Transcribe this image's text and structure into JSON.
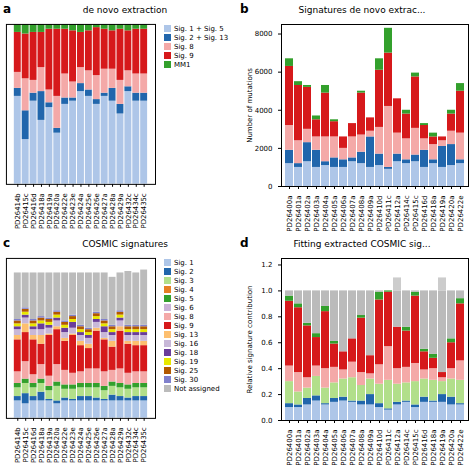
{
  "chart_data": [
    {
      "type": "bar",
      "title": "de novo extraction",
      "annotations": [
        {
          "text": "a"
        }
      ],
      "categories": [
        "PD26414b",
        "PD26415c",
        "PD26416d",
        "PD26418a",
        "PD26419a",
        "PD26420a",
        "PD26422e",
        "PD26423e",
        "PD26424a",
        "PD26425e",
        "PD26426e",
        "PD26427a",
        "PD26428a",
        "PD26429a",
        "PD26432c",
        "PD26434c",
        "PD26435c"
      ],
      "series": [
        {
          "name": "Sig. 1 + Sig. 5",
          "color": "#aec6e8",
          "values": [
            0.55,
            0.28,
            0.52,
            0.4,
            0.48,
            0.32,
            0.5,
            0.52,
            0.58,
            0.55,
            0.5,
            0.55,
            0.52,
            0.44,
            0.58,
            0.52,
            0.52
          ]
        },
        {
          "name": "Sig. 2 + Sig. 13",
          "color": "#2166ac",
          "values": [
            0.05,
            0.18,
            0.05,
            0.18,
            0.03,
            0.03,
            0.04,
            0.02,
            0.05,
            0.04,
            0.03,
            0.02,
            0.08,
            0.06,
            0.03,
            0.05,
            0.05
          ]
        },
        {
          "name": "Sig. 8",
          "color": "#f4a9a8",
          "values": [
            0.1,
            0.2,
            0.08,
            0.15,
            0.08,
            0.2,
            0.15,
            0.1,
            0.1,
            0.12,
            0.15,
            0.15,
            0.12,
            0.15,
            0.1,
            0.12,
            0.12
          ]
        },
        {
          "name": "Sig. 9",
          "color": "#d6191b",
          "values": [
            0.25,
            0.28,
            0.3,
            0.22,
            0.38,
            0.42,
            0.28,
            0.32,
            0.22,
            0.25,
            0.3,
            0.25,
            0.24,
            0.32,
            0.25,
            0.28,
            0.28
          ]
        },
        {
          "name": "MM1",
          "color": "#33a02c",
          "values": [
            0.05,
            0.06,
            0.05,
            0.05,
            0.03,
            0.03,
            0.03,
            0.04,
            0.05,
            0.04,
            0.02,
            0.03,
            0.04,
            0.03,
            0.04,
            0.03,
            0.03
          ]
        }
      ],
      "ylim": [
        0,
        1
      ],
      "stacked": true,
      "legend": "right",
      "tick_labels": "x",
      "grid": false
    },
    {
      "type": "bar",
      "title": "Signatures de novo extrac...",
      "annotations": [
        {
          "text": "b"
        }
      ],
      "categories": [
        "PD26400a",
        "PD26401a",
        "PD26402a",
        "PD26403a",
        "PD26404a",
        "PD26405a",
        "PD26406a",
        "PD26407a",
        "PD26408a",
        "PD26409a",
        "PD26410d",
        "PD26411c",
        "PD26412a",
        "PD26414c",
        "PD26415c",
        "PD26416d",
        "PD26418a",
        "PD26419a",
        "PD26420a",
        "PD26422e"
      ],
      "series": [
        {
          "color": "#aec6e8",
          "values": [
            1200,
            1000,
            1300,
            1000,
            1100,
            1000,
            1000,
            1300,
            1200,
            1000,
            1100,
            900,
            1300,
            1200,
            1300,
            1000,
            1200,
            1000,
            1100,
            1200
          ]
        },
        {
          "color": "#2166ac",
          "values": [
            700,
            200,
            1000,
            900,
            200,
            500,
            400,
            200,
            600,
            1600,
            600,
            100,
            400,
            200,
            350,
            900,
            200,
            1100,
            1100,
            200
          ]
        },
        {
          "color": "#f4a9a8",
          "values": [
            1300,
            1200,
            700,
            700,
            1300,
            1100,
            600,
            1100,
            900,
            300,
            1400,
            3200,
            1100,
            1100,
            1400,
            600,
            800,
            300,
            700,
            1400
          ]
        },
        {
          "color": "#d6191b",
          "values": [
            3100,
            2900,
            2200,
            900,
            2300,
            800,
            600,
            700,
            2200,
            700,
            3000,
            2800,
            1800,
            1300,
            2700,
            700,
            400,
            200,
            900,
            2200
          ]
        },
        {
          "color": "#33a02c",
          "values": [
            400,
            200,
            100,
            200,
            400,
            100,
            0,
            0,
            100,
            0,
            600,
            1300,
            0,
            200,
            200,
            100,
            200,
            0,
            200,
            400
          ]
        }
      ],
      "ylim": [
        0,
        8500
      ],
      "yticks": [
        0,
        2000,
        4000,
        6000,
        8000
      ],
      "ylabel": "Number of mutations",
      "stacked": true,
      "grid": false
    },
    {
      "type": "bar",
      "title": "COSMIC signatures",
      "annotations": [
        {
          "text": "c"
        }
      ],
      "categories": [
        "PD26414b",
        "PD26415c",
        "PD26416d",
        "PD26418a",
        "PD26419a",
        "PD26420a",
        "PD26422e",
        "PD26423e",
        "PD26424a",
        "PD26425e",
        "PD26426e",
        "PD26427a",
        "PD26428a",
        "PD26429a",
        "PD26432c",
        "PD26434c",
        "PD26435c"
      ],
      "series": [
        {
          "name": "Sig. 1",
          "color": "#aec6e8",
          "values": [
            0.12,
            0.1,
            0.12,
            0.12,
            0.12,
            0.1,
            0.12,
            0.12,
            0.12,
            0.12,
            0.12,
            0.12,
            0.12,
            0.12,
            0.12,
            0.12,
            0.12
          ]
        },
        {
          "name": "Sig. 2",
          "color": "#2166ac",
          "values": [
            0.03,
            0.07,
            0.03,
            0.06,
            0.01,
            0.02,
            0.02,
            0.01,
            0.03,
            0.03,
            0.02,
            0.01,
            0.04,
            0.03,
            0.02,
            0.03,
            0.03
          ]
        },
        {
          "name": "Sig. 3",
          "color": "#b2df8a",
          "values": [
            0.06,
            0.07,
            0.06,
            0.06,
            0.06,
            0.1,
            0.06,
            0.07,
            0.06,
            0.06,
            0.07,
            0.06,
            0.06,
            0.06,
            0.06,
            0.06,
            0.06
          ]
        },
        {
          "name": "Sig. 4",
          "color": "#e77f25",
          "values": [
            0.0,
            0.0,
            0.0,
            0.0,
            0.0,
            0.0,
            0.0,
            0.0,
            0.0,
            0.0,
            0.0,
            0.0,
            0.0,
            0.0,
            0.0,
            0.0,
            0.0
          ]
        },
        {
          "name": "Sig. 5",
          "color": "#33a02c",
          "values": [
            0.03,
            0.03,
            0.03,
            0.03,
            0.03,
            0.03,
            0.03,
            0.03,
            0.03,
            0.03,
            0.03,
            0.03,
            0.03,
            0.03,
            0.03,
            0.03,
            0.03
          ]
        },
        {
          "name": "Sig. 6",
          "color": "#cab2d6",
          "values": [
            0.0,
            0.0,
            0.0,
            0.0,
            0.0,
            0.0,
            0.0,
            0.0,
            0.0,
            0.0,
            0.0,
            0.0,
            0.0,
            0.0,
            0.0,
            0.0,
            0.0
          ]
        },
        {
          "name": "Sig. 8",
          "color": "#f4a9a8",
          "values": [
            0.08,
            0.12,
            0.06,
            0.1,
            0.07,
            0.12,
            0.1,
            0.08,
            0.08,
            0.1,
            0.1,
            0.1,
            0.08,
            0.1,
            0.08,
            0.08,
            0.08
          ]
        },
        {
          "name": "Sig. 9",
          "color": "#d6191b",
          "values": [
            0.22,
            0.2,
            0.24,
            0.14,
            0.28,
            0.24,
            0.2,
            0.26,
            0.18,
            0.14,
            0.26,
            0.22,
            0.16,
            0.26,
            0.2,
            0.18,
            0.18
          ]
        },
        {
          "name": "Sig. 13",
          "color": "#fdbf6f",
          "values": [
            0.03,
            0.06,
            0.03,
            0.06,
            0.01,
            0.02,
            0.02,
            0.01,
            0.03,
            0.03,
            0.02,
            0.01,
            0.04,
            0.03,
            0.02,
            0.03,
            0.03
          ]
        },
        {
          "name": "Sig. 16",
          "color": "#c8b8d8",
          "values": [
            0.04,
            0.04,
            0.04,
            0.04,
            0.04,
            0.04,
            0.04,
            0.04,
            0.04,
            0.04,
            0.04,
            0.04,
            0.04,
            0.04,
            0.04,
            0.04,
            0.04
          ]
        },
        {
          "name": "Sig. 18",
          "color": "#6a3d9a",
          "values": [
            0.02,
            0.02,
            0.02,
            0.04,
            0.02,
            0.02,
            0.03,
            0.04,
            0.02,
            0.02,
            0.02,
            0.04,
            0.02,
            0.02,
            0.02,
            0.02,
            0.02
          ]
        },
        {
          "name": "Sig. 19",
          "color": "#e8e800",
          "values": [
            0.02,
            0.02,
            0.02,
            0.02,
            0.02,
            0.02,
            0.02,
            0.02,
            0.02,
            0.02,
            0.02,
            0.02,
            0.02,
            0.02,
            0.02,
            0.02,
            0.02
          ]
        },
        {
          "name": "Sig. 25",
          "color": "#b35900",
          "values": [
            0.02,
            0.02,
            0.02,
            0.02,
            0.02,
            0.02,
            0.02,
            0.02,
            0.02,
            0.02,
            0.02,
            0.02,
            0.02,
            0.02,
            0.02,
            0.02,
            0.02
          ]
        },
        {
          "name": "Sig. 30",
          "color": "#8080cc",
          "values": [
            0.01,
            0.01,
            0.01,
            0.01,
            0.01,
            0.01,
            0.01,
            0.01,
            0.01,
            0.01,
            0.01,
            0.01,
            0.01,
            0.01,
            0.01,
            0.01,
            0.01
          ]
        },
        {
          "name": "Not assigned",
          "color": "#bbbbbb",
          "values": [
            0.32,
            0.24,
            0.32,
            0.3,
            0.31,
            0.26,
            0.33,
            0.29,
            0.36,
            0.38,
            0.27,
            0.32,
            0.33,
            0.26,
            0.37,
            0.36,
            0.38
          ]
        }
      ],
      "ylim": [
        0,
        1.1
      ],
      "stacked": true,
      "legend": "right",
      "tick_labels": "x",
      "grid": false
    },
    {
      "type": "bar",
      "title": "Fitting extracted COSMIC sig...",
      "annotations": [
        {
          "text": "d"
        }
      ],
      "categories": [
        "PD26400a",
        "PD26401a",
        "PD26402a",
        "PD26403a",
        "PD26404a",
        "PD26405a",
        "PD26406a",
        "PD26407a",
        "PD26408a",
        "PD26409a",
        "PD26410d",
        "PD26411c",
        "PD26412a",
        "PD26414c",
        "PD26415c",
        "PD26416d",
        "PD26418a",
        "PD26419a",
        "PD26420a",
        "PD26422e"
      ],
      "series": [
        {
          "color": "#aec6e8",
          "values": [
            0.1,
            0.1,
            0.12,
            0.15,
            0.12,
            0.14,
            0.15,
            0.14,
            0.12,
            0.12,
            0.1,
            0.08,
            0.12,
            0.14,
            0.1,
            0.14,
            0.14,
            0.14,
            0.12,
            0.12
          ]
        },
        {
          "color": "#2166ac",
          "values": [
            0.03,
            0.02,
            0.05,
            0.04,
            0.01,
            0.03,
            0.03,
            0.01,
            0.03,
            0.08,
            0.03,
            0.01,
            0.02,
            0.01,
            0.02,
            0.04,
            0.01,
            0.06,
            0.06,
            0.01
          ]
        },
        {
          "color": "#b2df8a",
          "values": [
            0.17,
            0.1,
            0.08,
            0.15,
            0.12,
            0.12,
            0.14,
            0.18,
            0.12,
            0.12,
            0.15,
            0.22,
            0.14,
            0.14,
            0.18,
            0.14,
            0.16,
            0.1,
            0.14,
            0.18
          ]
        },
        {
          "color": "#f4a9a8",
          "values": [
            0.12,
            0.15,
            0.08,
            0.08,
            0.15,
            0.12,
            0.07,
            0.12,
            0.1,
            0.04,
            0.15,
            0.26,
            0.12,
            0.12,
            0.14,
            0.07,
            0.09,
            0.03,
            0.08,
            0.15
          ]
        },
        {
          "color": "#d6191b",
          "values": [
            0.5,
            0.5,
            0.4,
            0.22,
            0.44,
            0.18,
            0.14,
            0.18,
            0.42,
            0.14,
            0.5,
            0.42,
            0.32,
            0.28,
            0.52,
            0.14,
            0.08,
            0.04,
            0.2,
            0.44
          ]
        },
        {
          "color": "#33a02c",
          "values": [
            0.04,
            0.03,
            0.02,
            0.03,
            0.04,
            0.02,
            0.0,
            0.0,
            0.02,
            0.0,
            0.06,
            0.01,
            0.0,
            0.03,
            0.03,
            0.02,
            0.03,
            0.0,
            0.03,
            0.04
          ]
        },
        {
          "color": "#bbbbbb",
          "values": [
            0.04,
            0.1,
            0.25,
            0.33,
            0.12,
            0.39,
            0.47,
            0.37,
            0.19,
            0.5,
            0.01,
            0.0,
            0.28,
            0.28,
            0.01,
            0.45,
            0.49,
            0.63,
            0.37,
            0.06
          ]
        },
        {
          "color": "#cccccc",
          "values": [
            0.0,
            0.0,
            0.0,
            0.0,
            0.0,
            0.0,
            0.0,
            0.0,
            0.0,
            0.0,
            0.0,
            0.0,
            0.1,
            0.0,
            0.0,
            0.0,
            0.0,
            0.1,
            0.0,
            0.0
          ]
        }
      ],
      "ylim": [
        0,
        1.25
      ],
      "yticks": [
        {
          "value": 0,
          "label": "0.0"
        },
        0.2,
        0.4,
        0.6,
        0.8,
        {
          "value": 1,
          "label": "1.0"
        },
        1.2
      ],
      "ylabel": "Relative signature contribution",
      "stacked": true,
      "grid": false
    }
  ]
}
